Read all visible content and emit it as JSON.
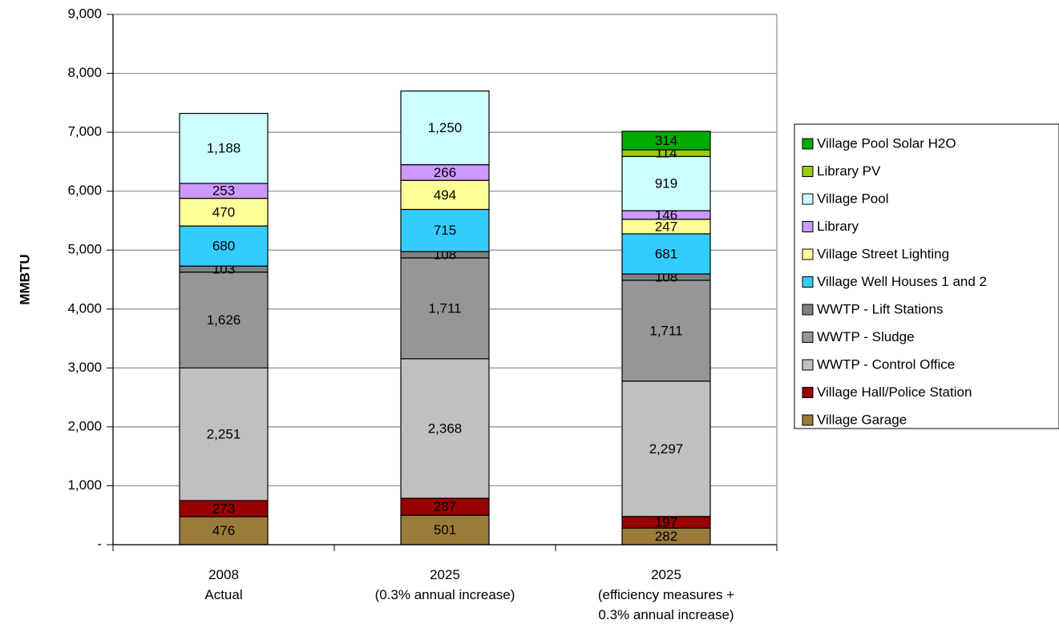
{
  "chart_data": {
    "type": "bar",
    "stacked": true,
    "title": "",
    "xlabel": "",
    "ylabel": "MMBTU",
    "ylim": [
      0,
      9000
    ],
    "yticks": [
      0,
      1000,
      2000,
      3000,
      4000,
      5000,
      6000,
      7000,
      8000,
      9000
    ],
    "ytick_labels": [
      "-",
      "1,000",
      "2,000",
      "3,000",
      "4,000",
      "5,000",
      "6,000",
      "7,000",
      "8,000",
      "9,000"
    ],
    "grid": "horizontal",
    "legend_position": "right",
    "categories": [
      [
        "2008",
        "Actual"
      ],
      [
        "2025",
        "(0.3% annual increase)"
      ],
      [
        "2025",
        "(efficiency measures +",
        "0.3% annual increase)"
      ]
    ],
    "series": [
      {
        "name": "Village Garage",
        "color": "#9B7B3A",
        "values": [
          476,
          501,
          282
        ],
        "labels": [
          "476",
          "501",
          "282"
        ]
      },
      {
        "name": "Village Hall/Police Station",
        "color": "#990000",
        "values": [
          273,
          287,
          197
        ],
        "labels": [
          "273",
          "287",
          "197"
        ]
      },
      {
        "name": "WWTP - Control Office",
        "color": "#C0C0C0",
        "values": [
          2251,
          2368,
          2297
        ],
        "labels": [
          "2,251",
          "2,368",
          "2,297"
        ]
      },
      {
        "name": "WWTP - Sludge",
        "color": "#969696",
        "values": [
          1626,
          1711,
          1711
        ],
        "labels": [
          "1,626",
          "1,711",
          "1,711"
        ]
      },
      {
        "name": "WWTP - Lift Stations",
        "color": "#808080",
        "values": [
          103,
          108,
          108
        ],
        "labels": [
          "103",
          "108",
          "108"
        ]
      },
      {
        "name": "Village Well Houses 1 and 2",
        "color": "#33CCFF",
        "values": [
          680,
          715,
          681
        ],
        "labels": [
          "680",
          "715",
          "681"
        ]
      },
      {
        "name": "Village Street Lighting",
        "color": "#FFFF99",
        "values": [
          470,
          494,
          247
        ],
        "labels": [
          "470",
          "494",
          "247"
        ]
      },
      {
        "name": "Library",
        "color": "#CC99FF",
        "values": [
          253,
          266,
          146
        ],
        "labels": [
          "253",
          "266",
          "146"
        ]
      },
      {
        "name": "Village Pool",
        "color": "#CCFFFF",
        "values": [
          1188,
          1250,
          919
        ],
        "labels": [
          "1,188",
          "1,250",
          "919"
        ]
      },
      {
        "name": "Library PV",
        "color": "#99CC00",
        "values": [
          0,
          0,
          114
        ],
        "labels": [
          "",
          "",
          "114"
        ]
      },
      {
        "name": "Village Pool Solar H2O",
        "color": "#00AA00",
        "values": [
          0,
          0,
          314
        ],
        "labels": [
          "",
          "",
          "314"
        ]
      }
    ]
  }
}
